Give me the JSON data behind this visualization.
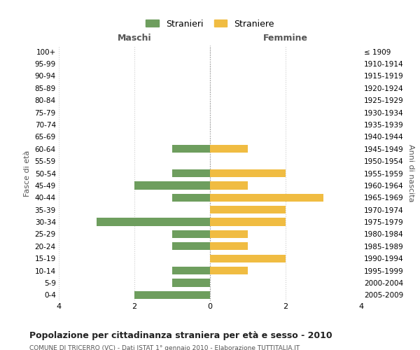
{
  "age_groups": [
    "100+",
    "95-99",
    "90-94",
    "85-89",
    "80-84",
    "75-79",
    "70-74",
    "65-69",
    "60-64",
    "55-59",
    "50-54",
    "45-49",
    "40-44",
    "35-39",
    "30-34",
    "25-29",
    "20-24",
    "15-19",
    "10-14",
    "5-9",
    "0-4"
  ],
  "birth_years": [
    "≤ 1909",
    "1910-1914",
    "1915-1919",
    "1920-1924",
    "1925-1929",
    "1930-1934",
    "1935-1939",
    "1940-1944",
    "1945-1949",
    "1950-1954",
    "1955-1959",
    "1960-1964",
    "1965-1969",
    "1970-1974",
    "1975-1979",
    "1980-1984",
    "1985-1989",
    "1990-1994",
    "1995-1999",
    "2000-2004",
    "2005-2009"
  ],
  "maschi": [
    0,
    0,
    0,
    0,
    0,
    0,
    0,
    0,
    1,
    0,
    1,
    2,
    1,
    0,
    3,
    1,
    1,
    0,
    1,
    1,
    2
  ],
  "femmine": [
    0,
    0,
    0,
    0,
    0,
    0,
    0,
    0,
    1,
    0,
    2,
    1,
    3,
    2,
    2,
    1,
    1,
    2,
    1,
    0,
    0
  ],
  "color_maschi": "#6e9e5e",
  "color_femmine": "#f0bc42",
  "title": "Popolazione per cittadinanza straniera per età e sesso - 2010",
  "subtitle": "COMUNE DI TRICERRO (VC) - Dati ISTAT 1° gennaio 2010 - Elaborazione TUTTITALIA.IT",
  "xlabel_left": "Maschi",
  "xlabel_right": "Femmine",
  "ylabel_left": "Fasce di età",
  "ylabel_right": "Anni di nascita",
  "legend_maschi": "Stranieri",
  "legend_femmine": "Straniere",
  "xlim": 4,
  "background_color": "#ffffff",
  "grid_color": "#cccccc",
  "bar_height": 0.65
}
